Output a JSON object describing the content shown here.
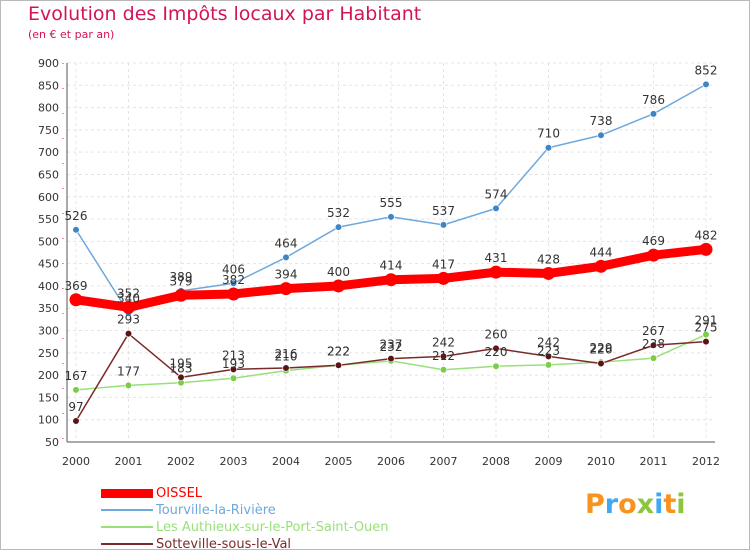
{
  "chart_data": {
    "type": "line",
    "title": "Evolution des Impôts locaux par Habitant",
    "subtitle": "(en € et par an)",
    "xlabel": "",
    "ylabel": "",
    "x": [
      2000,
      2001,
      2002,
      2003,
      2004,
      2005,
      2006,
      2007,
      2008,
      2009,
      2010,
      2011,
      2012
    ],
    "ylim": [
      50,
      900
    ],
    "yticks": [
      50,
      100,
      150,
      200,
      250,
      300,
      350,
      400,
      450,
      500,
      550,
      600,
      650,
      700,
      750,
      800,
      850,
      900
    ],
    "grid": true,
    "legend_position": "bottom-left",
    "series": [
      {
        "name": "OISSEL",
        "color": "#ff0000",
        "values": [
          369,
          352,
          379,
          382,
          394,
          400,
          414,
          417,
          431,
          428,
          444,
          469,
          482
        ]
      },
      {
        "name": "Tourville-la-Rivière",
        "color": "#6fa8dc",
        "values": [
          526,
          340,
          389,
          406,
          464,
          532,
          555,
          537,
          574,
          710,
          738,
          786,
          852
        ]
      },
      {
        "name": "Les Authieux-sur-le-Port-Saint-Ouen",
        "color": "#99e07a",
        "values": [
          167,
          177,
          183,
          193,
          210,
          222,
          232,
          212,
          220,
          223,
          229,
          238,
          291
        ]
      },
      {
        "name": "Sotteville-sous-le-Val",
        "color": "#7a2a2a",
        "values": [
          97,
          293,
          195,
          213,
          216,
          222,
          237,
          242,
          260,
          242,
          226,
          267,
          275
        ]
      }
    ]
  },
  "logo": {
    "text": "Proxiti",
    "colors": [
      "#f7931e",
      "#3fa9f5",
      "#f7931e",
      "#8cc63f",
      "#3fa9f5",
      "#f7931e",
      "#8cc63f"
    ]
  }
}
